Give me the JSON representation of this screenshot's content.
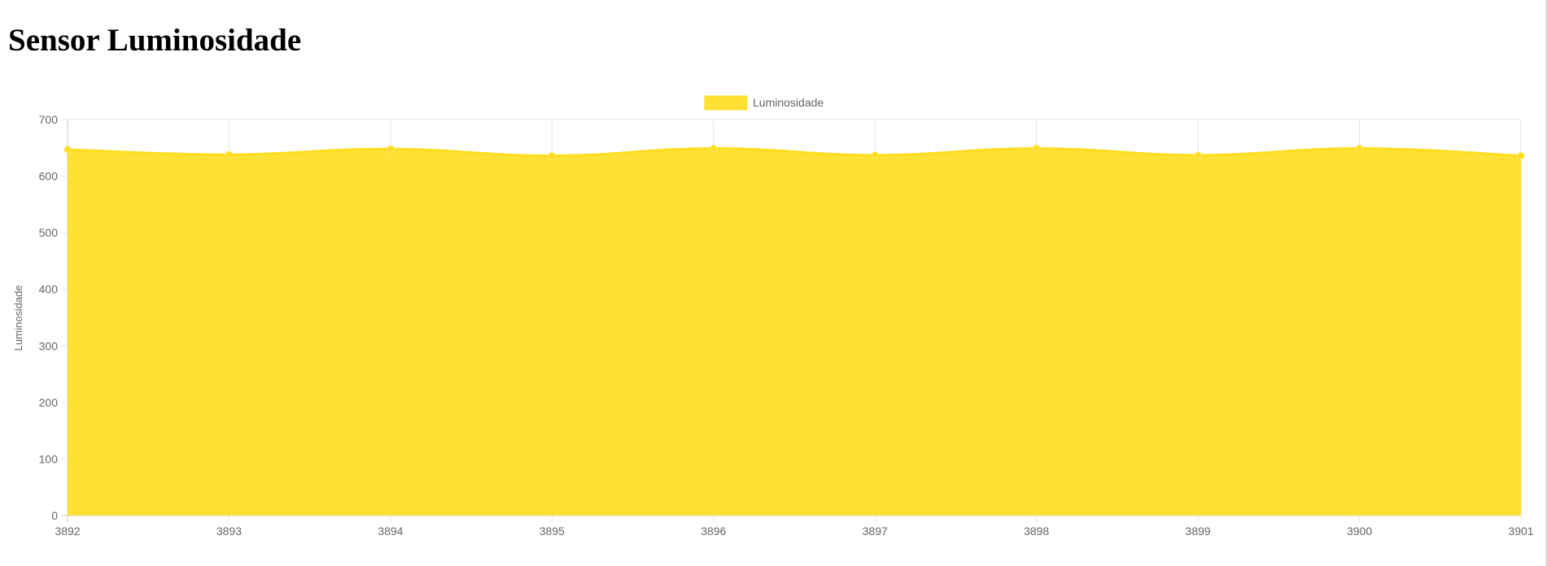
{
  "page": {
    "title": "Sensor Luminosidade"
  },
  "chart_data": {
    "type": "area",
    "x": [
      "3892",
      "3893",
      "3894",
      "3895",
      "3896",
      "3897",
      "3898",
      "3899",
      "3900",
      "3901"
    ],
    "series": [
      {
        "name": "Luminosidade",
        "values": [
          647,
          638,
          648,
          636,
          649,
          637,
          649,
          637,
          649,
          636
        ],
        "fill_color": "#FFE135",
        "line_color": "#FFDD1F"
      }
    ],
    "ylabel": "Luminosidade",
    "xlabel": "",
    "ylim": [
      0,
      700
    ],
    "y_ticks": [
      "0",
      "100",
      "200",
      "300",
      "400",
      "500",
      "600",
      "700"
    ],
    "legend_position": "top-center",
    "grid": true
  }
}
